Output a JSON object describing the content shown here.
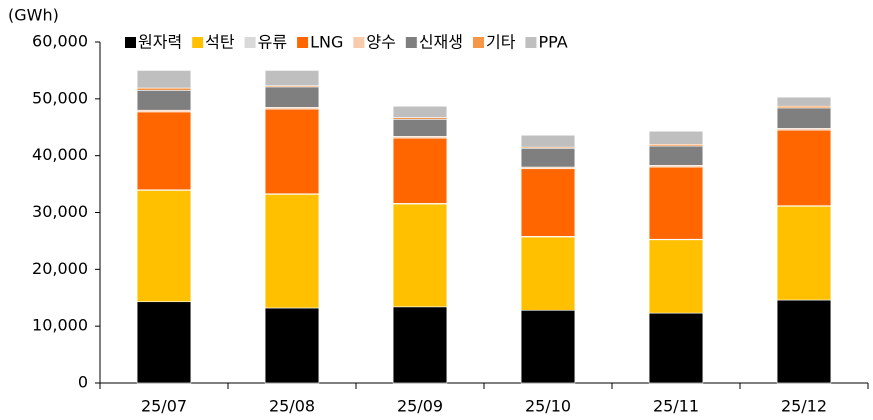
{
  "chart_data": {
    "type": "bar",
    "stacked": true,
    "y_label": "(GWh)",
    "categories": [
      "25/07",
      "25/08",
      "25/09",
      "25/10",
      "25/11",
      "25/12"
    ],
    "series": [
      {
        "name": "원자력",
        "color": "#000000",
        "values": [
          14300,
          13200,
          13400,
          12800,
          12300,
          14600
        ]
      },
      {
        "name": "석탄",
        "color": "#ffc000",
        "values": [
          19600,
          20000,
          18100,
          12900,
          12900,
          16500
        ]
      },
      {
        "name": "유류",
        "color": "#d9d9d9",
        "values": [
          100,
          100,
          100,
          100,
          100,
          100
        ]
      },
      {
        "name": "LNG",
        "color": "#ff6600",
        "values": [
          13700,
          14900,
          11500,
          11900,
          12700,
          13300
        ]
      },
      {
        "name": "양수",
        "color": "#f8cbad",
        "values": [
          300,
          300,
          300,
          300,
          300,
          300
        ]
      },
      {
        "name": "신재생",
        "color": "#7f7f7f",
        "values": [
          3500,
          3600,
          3000,
          3300,
          3400,
          3600
        ]
      },
      {
        "name": "기타",
        "color": "#f79646",
        "values": [
          400,
          200,
          300,
          200,
          300,
          300
        ]
      },
      {
        "name": "PPA",
        "color": "#bfbfbf",
        "values": [
          3100,
          2700,
          2000,
          2100,
          2300,
          1600
        ]
      }
    ],
    "ylim": [
      0,
      60000
    ],
    "yticks": [
      0,
      {
        "value": 10000,
        "label": "10,000"
      },
      {
        "value": 20000,
        "label": "20,000"
      },
      {
        "value": 30000,
        "label": "30,000"
      },
      {
        "value": 40000,
        "label": "40,000"
      },
      {
        "value": 50000,
        "label": "50,000"
      },
      {
        "value": 60000,
        "label": "60,000"
      }
    ],
    "legend": "top"
  }
}
